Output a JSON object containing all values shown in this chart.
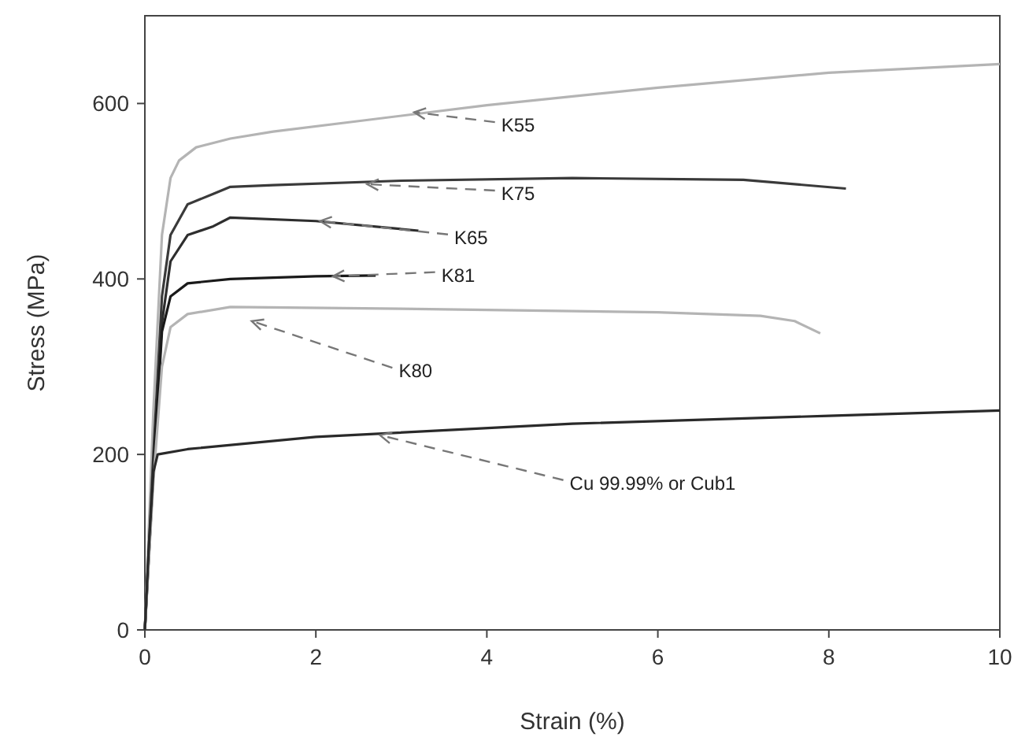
{
  "chart_data": {
    "type": "line",
    "xlabel": "Strain (%)",
    "ylabel": "Stress (MPa)",
    "xlim": [
      0,
      10
    ],
    "ylim": [
      0,
      700
    ],
    "xticks": [
      0,
      2,
      4,
      6,
      8,
      10
    ],
    "yticks": [
      0,
      200,
      400,
      600
    ],
    "grid": false,
    "marker": "none",
    "line_style": "solid",
    "series": [
      {
        "name": "K55",
        "color": "#b4b4b4",
        "x": [
          0,
          0.1,
          0.2,
          0.3,
          0.4,
          0.6,
          1,
          1.5,
          2.5,
          4,
          6,
          8,
          10
        ],
        "values": [
          0,
          250,
          450,
          515,
          535,
          550,
          560,
          568,
          580,
          598,
          618,
          635,
          645
        ]
      },
      {
        "name": "K75",
        "color": "#3a3a3a",
        "x": [
          0,
          0.1,
          0.2,
          0.3,
          0.5,
          0.8,
          1,
          1.5,
          3,
          5,
          7,
          8.2
        ],
        "values": [
          0,
          200,
          380,
          450,
          485,
          497,
          505,
          507,
          512,
          515,
          513,
          503
        ]
      },
      {
        "name": "K65",
        "color": "#2e2e2e",
        "x": [
          0,
          0.1,
          0.2,
          0.3,
          0.5,
          0.8,
          1,
          2,
          3.2
        ],
        "values": [
          0,
          180,
          350,
          420,
          450,
          460,
          470,
          466,
          455
        ]
      },
      {
        "name": "K81",
        "color": "#1a1a1a",
        "x": [
          0,
          0.1,
          0.2,
          0.3,
          0.5,
          1,
          2,
          2.7
        ],
        "values": [
          0,
          180,
          340,
          380,
          395,
          400,
          403,
          404
        ]
      },
      {
        "name": "K80",
        "color": "#b4b4b4",
        "x": [
          0,
          0.1,
          0.2,
          0.3,
          0.5,
          1,
          3,
          6,
          7.2,
          7.6,
          7.9
        ],
        "values": [
          0,
          170,
          300,
          345,
          360,
          368,
          366,
          362,
          358,
          352,
          338
        ]
      },
      {
        "name": "Cu 99.99% or Cub1",
        "color": "#2a2a2a",
        "x": [
          0,
          0.05,
          0.1,
          0.15,
          0.5,
          2,
          5,
          8,
          10
        ],
        "values": [
          0,
          100,
          180,
          200,
          206,
          220,
          235,
          244,
          250
        ]
      }
    ]
  }
}
